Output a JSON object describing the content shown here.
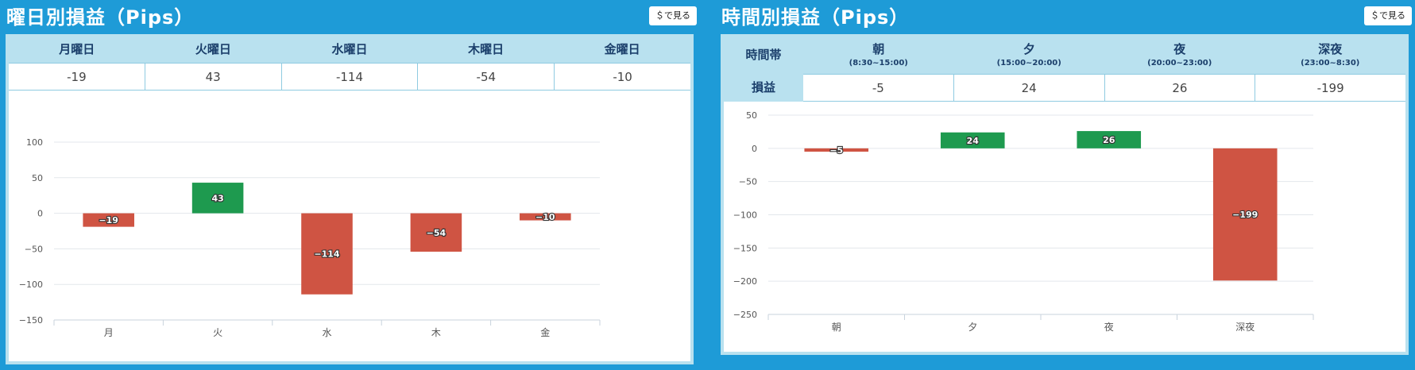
{
  "panel1": {
    "title": "曜日別損益（Pips）",
    "button_label": "＄で見る",
    "headers": [
      "月曜日",
      "火曜日",
      "水曜日",
      "木曜日",
      "金曜日"
    ],
    "values": [
      "-19",
      "43",
      "-114",
      "-54",
      "-10"
    ]
  },
  "panel2": {
    "title": "時間別損益（Pips）",
    "button_label": "＄で見る",
    "row_header_label": "時間帯",
    "row_value_label": "損益",
    "headers": [
      {
        "label": "朝",
        "sub": "(8:30~15:00)"
      },
      {
        "label": "夕",
        "sub": "(15:00~20:00)"
      },
      {
        "label": "夜",
        "sub": "(20:00~23:00)"
      },
      {
        "label": "深夜",
        "sub": "(23:00~8:30)"
      }
    ],
    "values": [
      "-5",
      "24",
      "26",
      "-199"
    ]
  },
  "chart_data": [
    {
      "type": "bar",
      "title": "曜日別損益（Pips）",
      "categories": [
        "月",
        "火",
        "水",
        "木",
        "金"
      ],
      "values": [
        -19,
        43,
        -114,
        -54,
        -10
      ],
      "ylim": [
        -150,
        100
      ],
      "yticks": [
        100,
        50,
        0,
        -50,
        -100,
        -150
      ],
      "grid": true,
      "colors": {
        "positive": "#1e9a4f",
        "negative": "#cf5443"
      }
    },
    {
      "type": "bar",
      "title": "時間別損益（Pips）",
      "categories": [
        "朝",
        "夕",
        "夜",
        "深夜"
      ],
      "values": [
        -5,
        24,
        26,
        -199
      ],
      "ylim": [
        -250,
        50
      ],
      "yticks": [
        50,
        0,
        -50,
        -100,
        -150,
        -200,
        -250
      ],
      "grid": true,
      "colors": {
        "positive": "#1e9a4f",
        "negative": "#cf5443"
      }
    }
  ]
}
